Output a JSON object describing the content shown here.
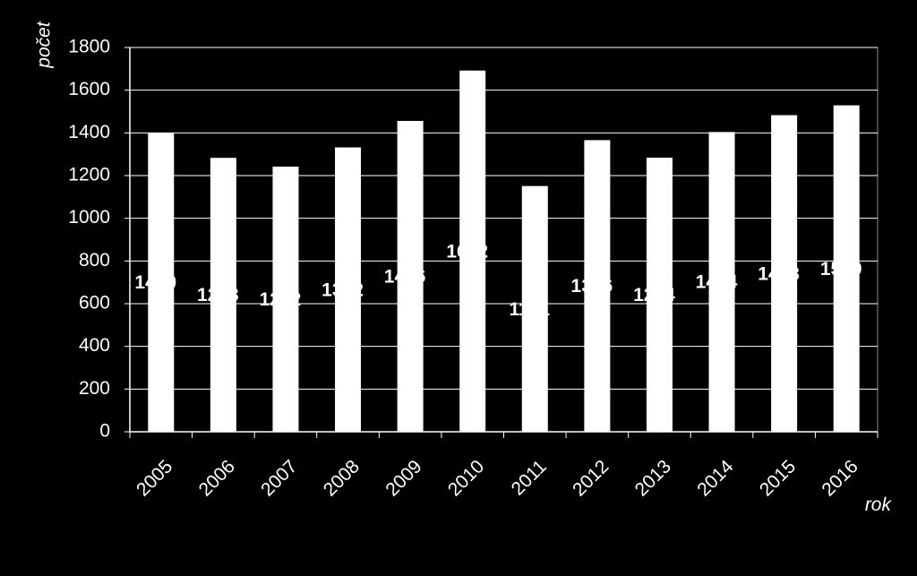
{
  "chart_data": {
    "type": "bar",
    "x_label": "rok",
    "y_label": "počet",
    "categories": [
      "2005",
      "2006",
      "2007",
      "2008",
      "2009",
      "2010",
      "2011",
      "2012",
      "2013",
      "2014",
      "2015",
      "2016"
    ],
    "values": [
      1400,
      1283,
      1242,
      1332,
      1456,
      1692,
      1151,
      1366,
      1284,
      1404,
      1483,
      1529
    ],
    "color": "#ffffff",
    "ylim": [
      0,
      1800
    ],
    "yticks": [
      0,
      200,
      400,
      600,
      800,
      1000,
      1200,
      1400,
      1600,
      1800
    ],
    "grid": true
  }
}
